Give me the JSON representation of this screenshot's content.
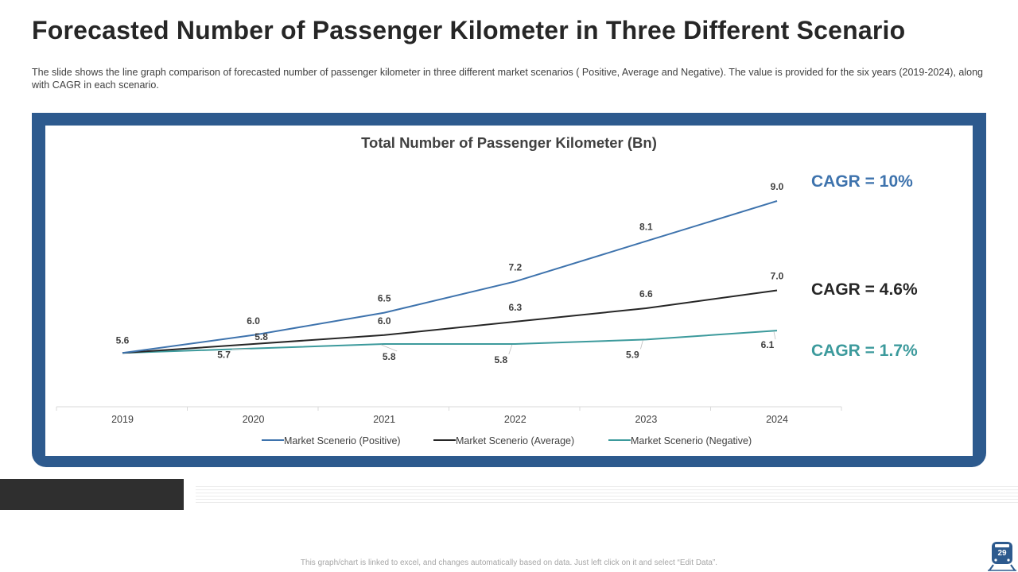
{
  "title": "Forecasted Number of Passenger Kilometer in Three Different Scenario",
  "subtitle": "The slide shows the line graph comparison of forecasted number of passenger kilometer in three different  market scenarios ( Positive, Average and Negative).  The value is provided for the six years (2019-2024), along with CAGR in each scenario.",
  "footnote": "This graph/chart is linked to excel, and changes automatically based on data. Just left click on it and select “Edit Data”.",
  "page_number": "29",
  "colors": {
    "positive": "#3e73ad",
    "average": "#262626",
    "negative": "#3c9a9c",
    "frame": "#2d5a8e"
  },
  "cagr": [
    {
      "text": "CAGR = 10%",
      "color": "#3e73ad"
    },
    {
      "text": "CAGR = 4.6%",
      "color": "#262626"
    },
    {
      "text": "CAGR = 1.7%",
      "color": "#3c9a9c"
    }
  ],
  "chart_data": {
    "type": "line",
    "title": "Total Number of Passenger Kilometer (Bn)",
    "categories": [
      "2019",
      "2020",
      "2021",
      "2022",
      "2023",
      "2024"
    ],
    "series": [
      {
        "name": "Market Scenerio (Positive)",
        "values": [
          5.6,
          6.0,
          6.5,
          7.2,
          8.1,
          9.0
        ]
      },
      {
        "name": "Market Scenerio (Average)",
        "values": [
          5.6,
          5.8,
          6.0,
          6.3,
          6.6,
          7.0
        ]
      },
      {
        "name": "Market Scenerio (Negative)",
        "values": [
          5.6,
          5.7,
          5.8,
          5.8,
          5.9,
          6.1
        ]
      }
    ],
    "data_labels": [
      [
        "5.6",
        "6.0",
        "6.5",
        "7.2",
        "8.1",
        "9.0"
      ],
      [
        "",
        "5.8",
        "6.0",
        "6.3",
        "6.6",
        "7.0"
      ],
      [
        "",
        "5.7",
        "5.8",
        "5.8",
        "5.9",
        "6.1"
      ]
    ],
    "xlabel": "",
    "ylabel": "",
    "ylim": [
      5.0,
      9.8
    ],
    "legend": "bottom",
    "grid": false
  }
}
